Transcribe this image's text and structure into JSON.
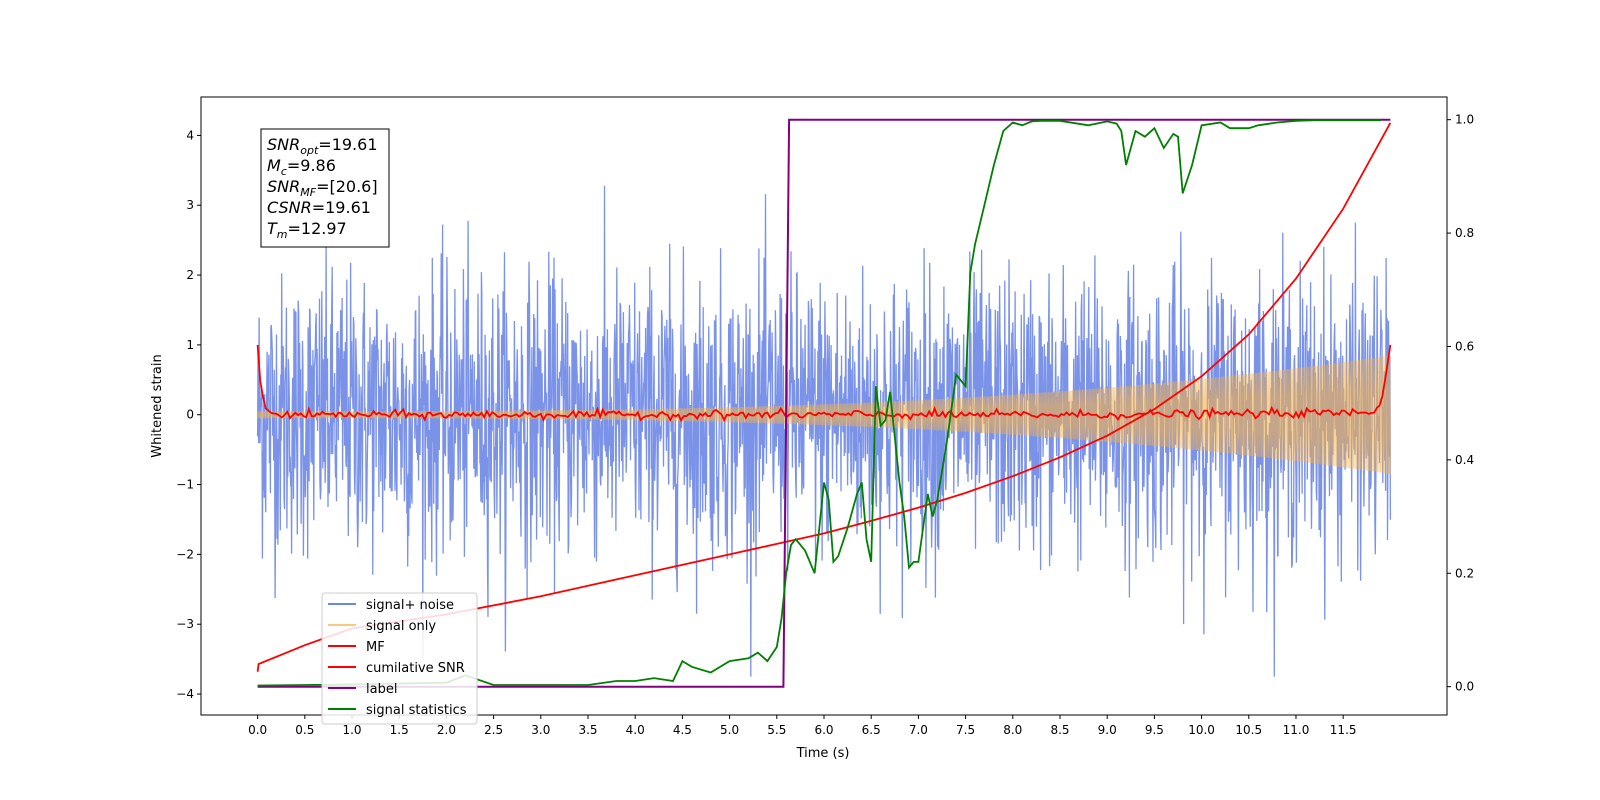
{
  "chart_data": {
    "type": "line",
    "xlabel": "Time (s)",
    "ylabel": "Whitened strain",
    "xlim": [
      -0.6,
      12.6
    ],
    "ylim": [
      -4.3,
      4.55
    ],
    "y2lim": [
      -0.05,
      1.04
    ],
    "x_ticks": [
      "0.0",
      "0.5",
      "1.0",
      "1.5",
      "2.0",
      "2.5",
      "3.0",
      "3.5",
      "4.0",
      "4.5",
      "5.0",
      "5.5",
      "6.0",
      "6.5",
      "7.0",
      "7.5",
      "8.0",
      "8.5",
      "9.0",
      "9.5",
      "10.0",
      "10.5",
      "11.0",
      "11.5"
    ],
    "y_ticks": [
      "4",
      "3",
      "2",
      "1",
      "0",
      "−1",
      "−2",
      "−3",
      "−4"
    ],
    "y2_ticks": [
      "1.0",
      "0.8",
      "0.6",
      "0.4",
      "0.2",
      "0.0"
    ],
    "grid": false,
    "legend_position": "lower-left",
    "annotation": {
      "lines": [
        {
          "label": "SNR",
          "sub": "opt",
          "value": "=19.61"
        },
        {
          "label": "M",
          "sub": "c",
          "value": "=9.86"
        },
        {
          "label": "SNR",
          "sub": "MF",
          "value": "=[20.6]"
        },
        {
          "label": "CSNR",
          "sub": "",
          "value": "=19.61"
        },
        {
          "label": "T",
          "sub": "m",
          "value": "=12.97"
        }
      ]
    },
    "colors": {
      "noise": "#6b86e6",
      "signal": "#f5b24a",
      "mf": "#ff0000",
      "csnr": "#ff0000",
      "label": "#800080",
      "stats": "#008000"
    },
    "series": [
      {
        "name": "signal+ noise",
        "axis": "left",
        "kind": "noise",
        "x_range": [
          0,
          12.0
        ],
        "amplitude_sigma": 1.0
      },
      {
        "name": "signal only",
        "axis": "left",
        "kind": "chirp",
        "x_range": [
          0,
          12.0
        ],
        "amplitude_start": 0.05,
        "amplitude_end": 0.85
      },
      {
        "name": "MF",
        "axis": "left",
        "x": [
          0,
          0.03,
          0.08,
          0.15,
          0.3,
          1.0,
          3.0,
          6.0,
          9.0,
          11.8,
          11.9,
          11.95,
          12.0
        ],
        "y": [
          1.0,
          0.45,
          0.1,
          0.02,
          0.0,
          0.0,
          0.0,
          0.0,
          0.0,
          0.03,
          0.15,
          0.55,
          1.0
        ]
      },
      {
        "name": "cumilative SNR",
        "axis": "left",
        "x": [
          0,
          0.01,
          0.5,
          1.0,
          2.0,
          3.0,
          4.0,
          5.0,
          5.5,
          6.0,
          6.5,
          7.0,
          7.5,
          8.0,
          8.5,
          9.0,
          9.5,
          10.0,
          10.5,
          11.0,
          11.5,
          12.0
        ],
        "y": [
          -3.68,
          -3.57,
          -3.3,
          -3.06,
          -2.86,
          -2.6,
          -2.3,
          -2.0,
          -1.85,
          -1.7,
          -1.52,
          -1.33,
          -1.12,
          -0.88,
          -0.61,
          -0.3,
          0.08,
          0.55,
          1.15,
          1.95,
          2.95,
          4.18
        ]
      },
      {
        "name": "label",
        "axis": "right",
        "x": [
          0,
          5.57,
          5.63,
          12.0
        ],
        "y": [
          0.0,
          0.0,
          1.0,
          1.0
        ]
      },
      {
        "name": "signal statistics",
        "axis": "right",
        "x": [
          0,
          0.5,
          1.0,
          2.0,
          2.2,
          2.5,
          3.0,
          3.5,
          3.8,
          4.0,
          4.2,
          4.4,
          4.5,
          4.6,
          4.8,
          5.0,
          5.2,
          5.3,
          5.4,
          5.5,
          5.55,
          5.6,
          5.65,
          5.7,
          5.8,
          5.9,
          5.95,
          6.0,
          6.05,
          6.1,
          6.15,
          6.25,
          6.35,
          6.4,
          6.45,
          6.5,
          6.55,
          6.6,
          6.65,
          6.7,
          6.8,
          6.85,
          6.9,
          6.95,
          7.0,
          7.05,
          7.1,
          7.15,
          7.2,
          7.3,
          7.4,
          7.5,
          7.55,
          7.6,
          7.7,
          7.8,
          7.9,
          8.0,
          8.1,
          8.2,
          8.3,
          8.5,
          8.8,
          9.0,
          9.1,
          9.15,
          9.2,
          9.25,
          9.3,
          9.4,
          9.5,
          9.6,
          9.7,
          9.75,
          9.8,
          9.9,
          10.0,
          10.2,
          10.3,
          10.5,
          10.6,
          10.8,
          11.0,
          11.2,
          11.5,
          11.9
        ],
        "y": [
          0.002,
          0.003,
          0.004,
          0.007,
          0.02,
          0.003,
          0.003,
          0.003,
          0.01,
          0.01,
          0.015,
          0.01,
          0.045,
          0.035,
          0.025,
          0.045,
          0.05,
          0.06,
          0.045,
          0.07,
          0.12,
          0.2,
          0.25,
          0.26,
          0.24,
          0.2,
          0.28,
          0.36,
          0.33,
          0.22,
          0.23,
          0.28,
          0.34,
          0.36,
          0.26,
          0.22,
          0.53,
          0.46,
          0.47,
          0.52,
          0.36,
          0.3,
          0.21,
          0.22,
          0.22,
          0.28,
          0.34,
          0.3,
          0.33,
          0.43,
          0.55,
          0.53,
          0.73,
          0.78,
          0.85,
          0.92,
          0.98,
          0.995,
          0.99,
          0.997,
          0.998,
          0.998,
          0.99,
          0.997,
          0.993,
          0.98,
          0.92,
          0.95,
          0.98,
          0.97,
          0.985,
          0.95,
          0.975,
          0.97,
          0.87,
          0.92,
          0.99,
          0.995,
          0.985,
          0.985,
          0.99,
          0.995,
          0.998,
          0.999,
          0.999,
          0.999
        ]
      }
    ]
  }
}
